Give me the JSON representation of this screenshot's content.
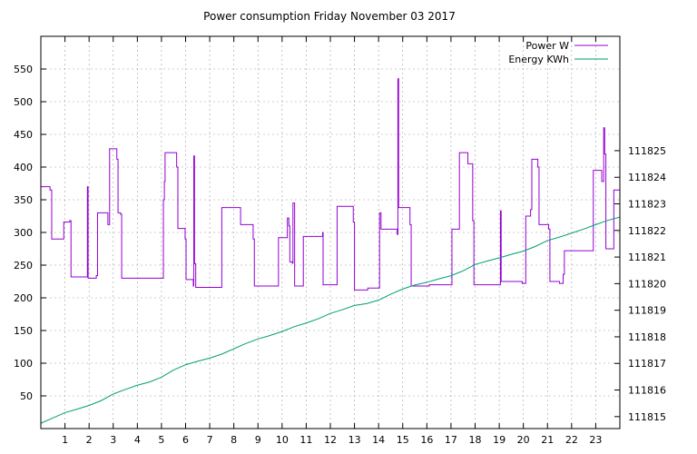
{
  "chart_data": {
    "type": "line",
    "title": "Power consumption Friday November 03 2017",
    "xlim": [
      0,
      24
    ],
    "x_ticks": [
      1,
      2,
      3,
      4,
      5,
      6,
      7,
      8,
      9,
      10,
      11,
      12,
      13,
      14,
      15,
      16,
      17,
      18,
      19,
      20,
      21,
      22,
      23
    ],
    "ylim": [
      0,
      600
    ],
    "y_ticks": [
      50,
      100,
      150,
      200,
      250,
      300,
      350,
      400,
      450,
      500,
      550
    ],
    "y2lim": [
      111814.55,
      111829.3
    ],
    "y2_ticks": [
      111815,
      111816,
      111817,
      111818,
      111819,
      111820,
      111821,
      111822,
      111823,
      111824,
      111825
    ],
    "grid": true,
    "legend_position": "top-right",
    "series": [
      {
        "name": "Power W",
        "color": "#9400d3",
        "axis": "left",
        "step": true,
        "points": [
          [
            0,
            370
          ],
          [
            0.35,
            370
          ],
          [
            0.38,
            365
          ],
          [
            0.45,
            290
          ],
          [
            0.9,
            290
          ],
          [
            0.95,
            316
          ],
          [
            1.15,
            316
          ],
          [
            1.2,
            318
          ],
          [
            1.25,
            232
          ],
          [
            1.9,
            232
          ],
          [
            1.93,
            370
          ],
          [
            1.96,
            230
          ],
          [
            2.25,
            230
          ],
          [
            2.3,
            234
          ],
          [
            2.35,
            330
          ],
          [
            2.75,
            330
          ],
          [
            2.78,
            312
          ],
          [
            2.85,
            428
          ],
          [
            3.1,
            428
          ],
          [
            3.15,
            412
          ],
          [
            3.2,
            330
          ],
          [
            3.3,
            328
          ],
          [
            3.35,
            230
          ],
          [
            5.05,
            230
          ],
          [
            5.08,
            350
          ],
          [
            5.12,
            378
          ],
          [
            5.15,
            422
          ],
          [
            5.6,
            422
          ],
          [
            5.63,
            400
          ],
          [
            5.68,
            306
          ],
          [
            5.95,
            306
          ],
          [
            5.98,
            290
          ],
          [
            6.02,
            228
          ],
          [
            6.3,
            228
          ],
          [
            6.32,
            218
          ],
          [
            6.34,
            417
          ],
          [
            6.37,
            252
          ],
          [
            6.42,
            216
          ],
          [
            7.45,
            216
          ],
          [
            7.5,
            338
          ],
          [
            8.25,
            338
          ],
          [
            8.28,
            312
          ],
          [
            8.75,
            312
          ],
          [
            8.8,
            290
          ],
          [
            8.85,
            218
          ],
          [
            9.8,
            218
          ],
          [
            9.85,
            292
          ],
          [
            10.2,
            292
          ],
          [
            10.22,
            322
          ],
          [
            10.28,
            310
          ],
          [
            10.32,
            255
          ],
          [
            10.42,
            253
          ],
          [
            10.45,
            345
          ],
          [
            10.52,
            218
          ],
          [
            10.85,
            218
          ],
          [
            10.88,
            294
          ],
          [
            11.65,
            294
          ],
          [
            11.68,
            300
          ],
          [
            11.7,
            220
          ],
          [
            12.25,
            220
          ],
          [
            12.28,
            340
          ],
          [
            12.92,
            340
          ],
          [
            12.95,
            316
          ],
          [
            13,
            212
          ],
          [
            13.5,
            212
          ],
          [
            13.55,
            215
          ],
          [
            14,
            215
          ],
          [
            14.04,
            330
          ],
          [
            14.1,
            305
          ],
          [
            14.75,
            305
          ],
          [
            14.77,
            297
          ],
          [
            14.8,
            535
          ],
          [
            14.83,
            338
          ],
          [
            15.25,
            338
          ],
          [
            15.3,
            312
          ],
          [
            15.35,
            218
          ],
          [
            16,
            218
          ],
          [
            16.1,
            220
          ],
          [
            17,
            220
          ],
          [
            17.04,
            305
          ],
          [
            17.3,
            305
          ],
          [
            17.35,
            422
          ],
          [
            17.65,
            422
          ],
          [
            17.7,
            405
          ],
          [
            17.85,
            405
          ],
          [
            17.9,
            318
          ],
          [
            17.95,
            220
          ],
          [
            19,
            220
          ],
          [
            19.05,
            333
          ],
          [
            19.08,
            225
          ],
          [
            19.9,
            225
          ],
          [
            19.95,
            222
          ],
          [
            20.05,
            222
          ],
          [
            20.1,
            325
          ],
          [
            20.25,
            325
          ],
          [
            20.3,
            335
          ],
          [
            20.35,
            412
          ],
          [
            20.55,
            412
          ],
          [
            20.6,
            400
          ],
          [
            20.65,
            312
          ],
          [
            21,
            312
          ],
          [
            21.05,
            305
          ],
          [
            21.1,
            225
          ],
          [
            21.45,
            225
          ],
          [
            21.5,
            222
          ],
          [
            21.6,
            222
          ],
          [
            21.65,
            236
          ],
          [
            21.7,
            272
          ],
          [
            22.85,
            272
          ],
          [
            22.9,
            395
          ],
          [
            23.2,
            395
          ],
          [
            23.25,
            378
          ],
          [
            23.3,
            378
          ],
          [
            23.33,
            460
          ],
          [
            23.37,
            420
          ],
          [
            23.42,
            275
          ],
          [
            23.7,
            275
          ],
          [
            23.75,
            365
          ],
          [
            24,
            365
          ]
        ]
      },
      {
        "name": "Energy KWh",
        "color": "#009e73",
        "axis": "right",
        "step": false,
        "points": [
          [
            0,
            111814.75
          ],
          [
            0.5,
            111814.95
          ],
          [
            1,
            111815.15
          ],
          [
            1.5,
            111815.28
          ],
          [
            2,
            111815.42
          ],
          [
            2.5,
            111815.6
          ],
          [
            3,
            111815.85
          ],
          [
            3.5,
            111816.02
          ],
          [
            4,
            111816.18
          ],
          [
            4.5,
            111816.3
          ],
          [
            5,
            111816.48
          ],
          [
            5.5,
            111816.75
          ],
          [
            6,
            111816.95
          ],
          [
            6.5,
            111817.08
          ],
          [
            7,
            111817.2
          ],
          [
            7.5,
            111817.35
          ],
          [
            8,
            111817.55
          ],
          [
            8.5,
            111817.75
          ],
          [
            9,
            111817.92
          ],
          [
            9.5,
            111818.05
          ],
          [
            10,
            111818.2
          ],
          [
            10.5,
            111818.38
          ],
          [
            11,
            111818.52
          ],
          [
            11.5,
            111818.68
          ],
          [
            12,
            111818.88
          ],
          [
            12.5,
            111819.02
          ],
          [
            13,
            111819.18
          ],
          [
            13.5,
            111819.25
          ],
          [
            14,
            111819.38
          ],
          [
            14.5,
            111819.6
          ],
          [
            15,
            111819.8
          ],
          [
            15.5,
            111819.95
          ],
          [
            16,
            111820.05
          ],
          [
            16.5,
            111820.18
          ],
          [
            17,
            111820.3
          ],
          [
            17.5,
            111820.48
          ],
          [
            18,
            111820.72
          ],
          [
            18.5,
            111820.85
          ],
          [
            19,
            111820.97
          ],
          [
            19.5,
            111821.1
          ],
          [
            20,
            111821.22
          ],
          [
            20.5,
            111821.4
          ],
          [
            21,
            111821.62
          ],
          [
            21.5,
            111821.75
          ],
          [
            22,
            111821.9
          ],
          [
            22.5,
            111822.05
          ],
          [
            23,
            111822.22
          ],
          [
            23.5,
            111822.38
          ],
          [
            24,
            111822.5
          ]
        ]
      }
    ]
  }
}
